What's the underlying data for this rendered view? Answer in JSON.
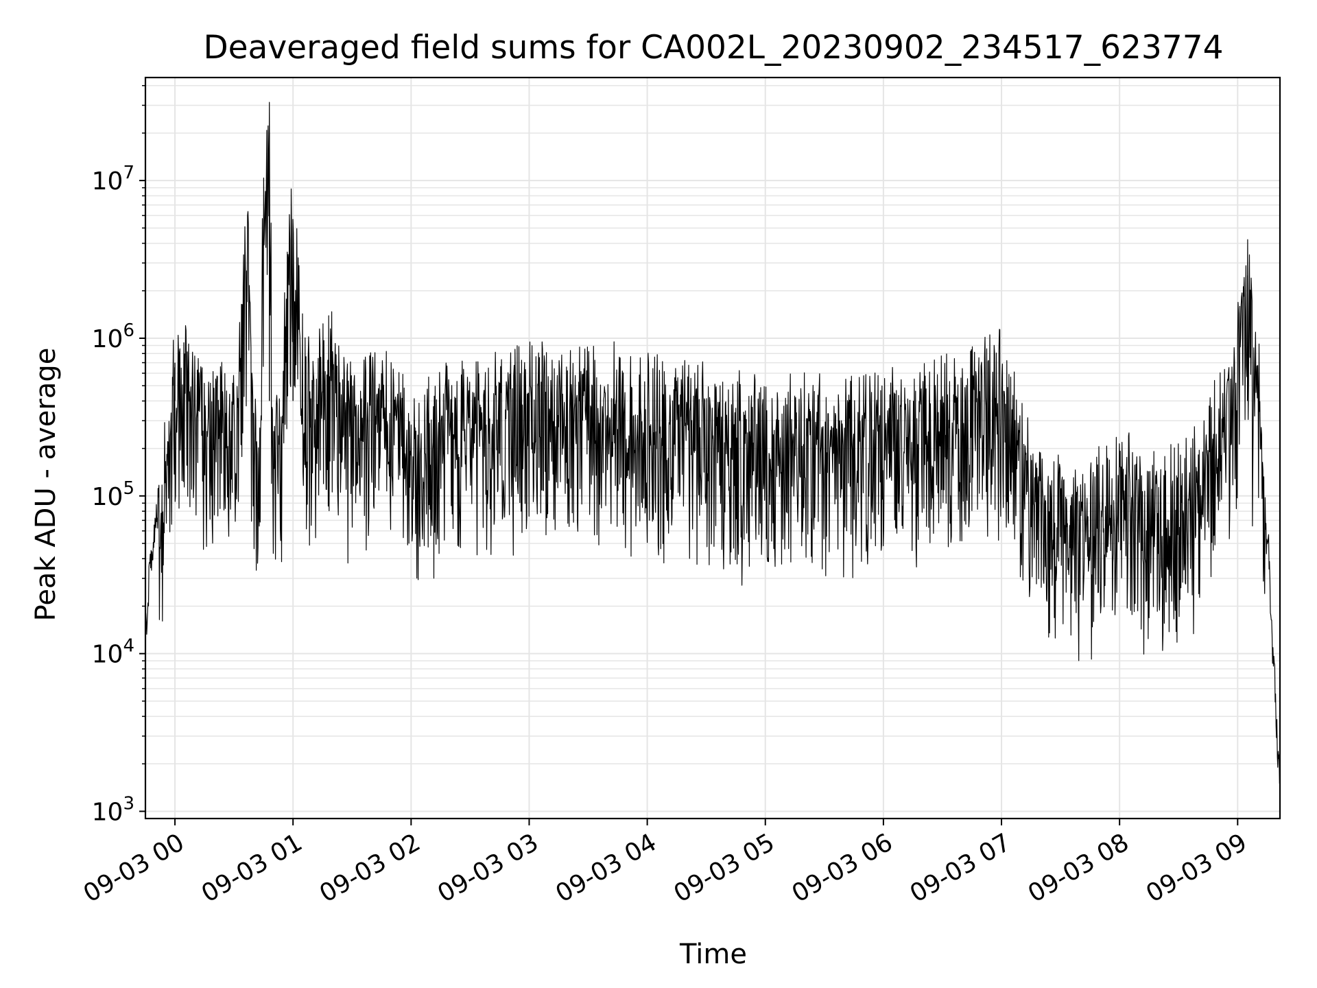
{
  "chart_data": {
    "type": "line",
    "title": "Deaveraged field sums for CA002L_20230902_234517_623774",
    "xlabel": "Time",
    "ylabel": "Peak ADU - average",
    "yscale": "log",
    "ylim": [
      900,
      45000000
    ],
    "xlim": [
      "2023-09-02T23:45:00",
      "2023-09-03T09:21:30"
    ],
    "grid": true,
    "line_color": "#000000",
    "grid_color": "#e5e5e5",
    "x_ticks": [
      "09-03 00",
      "09-03 01",
      "09-03 02",
      "09-03 03",
      "09-03 04",
      "09-03 05",
      "09-03 06",
      "09-03 07",
      "09-03 08",
      "09-03 09"
    ],
    "y_ticks": [
      {
        "base": "10",
        "exp": "3"
      },
      {
        "base": "10",
        "exp": "4"
      },
      {
        "base": "10",
        "exp": "5"
      },
      {
        "base": "10",
        "exp": "6"
      },
      {
        "base": "10",
        "exp": "7"
      }
    ],
    "series": [
      {
        "x": [
          "2023-09-02T23:45:00",
          "2023-09-02T23:48:00",
          "2023-09-02T23:52:00",
          "2023-09-02T23:57:00",
          "2023-09-03T00:00:00",
          "2023-09-03T00:05:00",
          "2023-09-03T00:12:00",
          "2023-09-03T00:20:00",
          "2023-09-03T00:30:00",
          "2023-09-03T00:37:00",
          "2023-09-03T00:40:00",
          "2023-09-03T00:48:00",
          "2023-09-03T00:50:00",
          "2023-09-03T01:00:00",
          "2023-09-03T01:10:00",
          "2023-09-03T01:20:00",
          "2023-09-03T01:30:00",
          "2023-09-03T01:45:00",
          "2023-09-03T02:00:00",
          "2023-09-03T02:30:00",
          "2023-09-03T03:00:00",
          "2023-09-03T03:30:00",
          "2023-09-03T04:00:00",
          "2023-09-03T04:30:00",
          "2023-09-03T05:00:00",
          "2023-09-03T05:30:00",
          "2023-09-03T06:00:00",
          "2023-09-03T06:30:00",
          "2023-09-03T07:00:00",
          "2023-09-03T07:15:00",
          "2023-09-03T07:25:00",
          "2023-09-03T07:40:00",
          "2023-09-03T08:00:00",
          "2023-09-03T08:20:00",
          "2023-09-03T08:40:00",
          "2023-09-03T08:55:00",
          "2023-09-03T09:05:00",
          "2023-09-03T09:10:00",
          "2023-09-03T09:15:00",
          "2023-09-03T09:18:00",
          "2023-09-03T09:21:00"
        ],
        "y": [
          14000,
          40000,
          90000,
          200000,
          700000,
          650000,
          500000,
          400000,
          300000,
          4000000,
          300000,
          20000000,
          300000,
          5000000,
          500000,
          800000,
          400000,
          500000,
          300000,
          400000,
          500000,
          500000,
          450000,
          350000,
          300000,
          300000,
          350000,
          400000,
          600000,
          150000,
          100000,
          80000,
          150000,
          100000,
          150000,
          500000,
          2500000,
          600000,
          60000,
          10000,
          2000
        ]
      }
    ]
  }
}
